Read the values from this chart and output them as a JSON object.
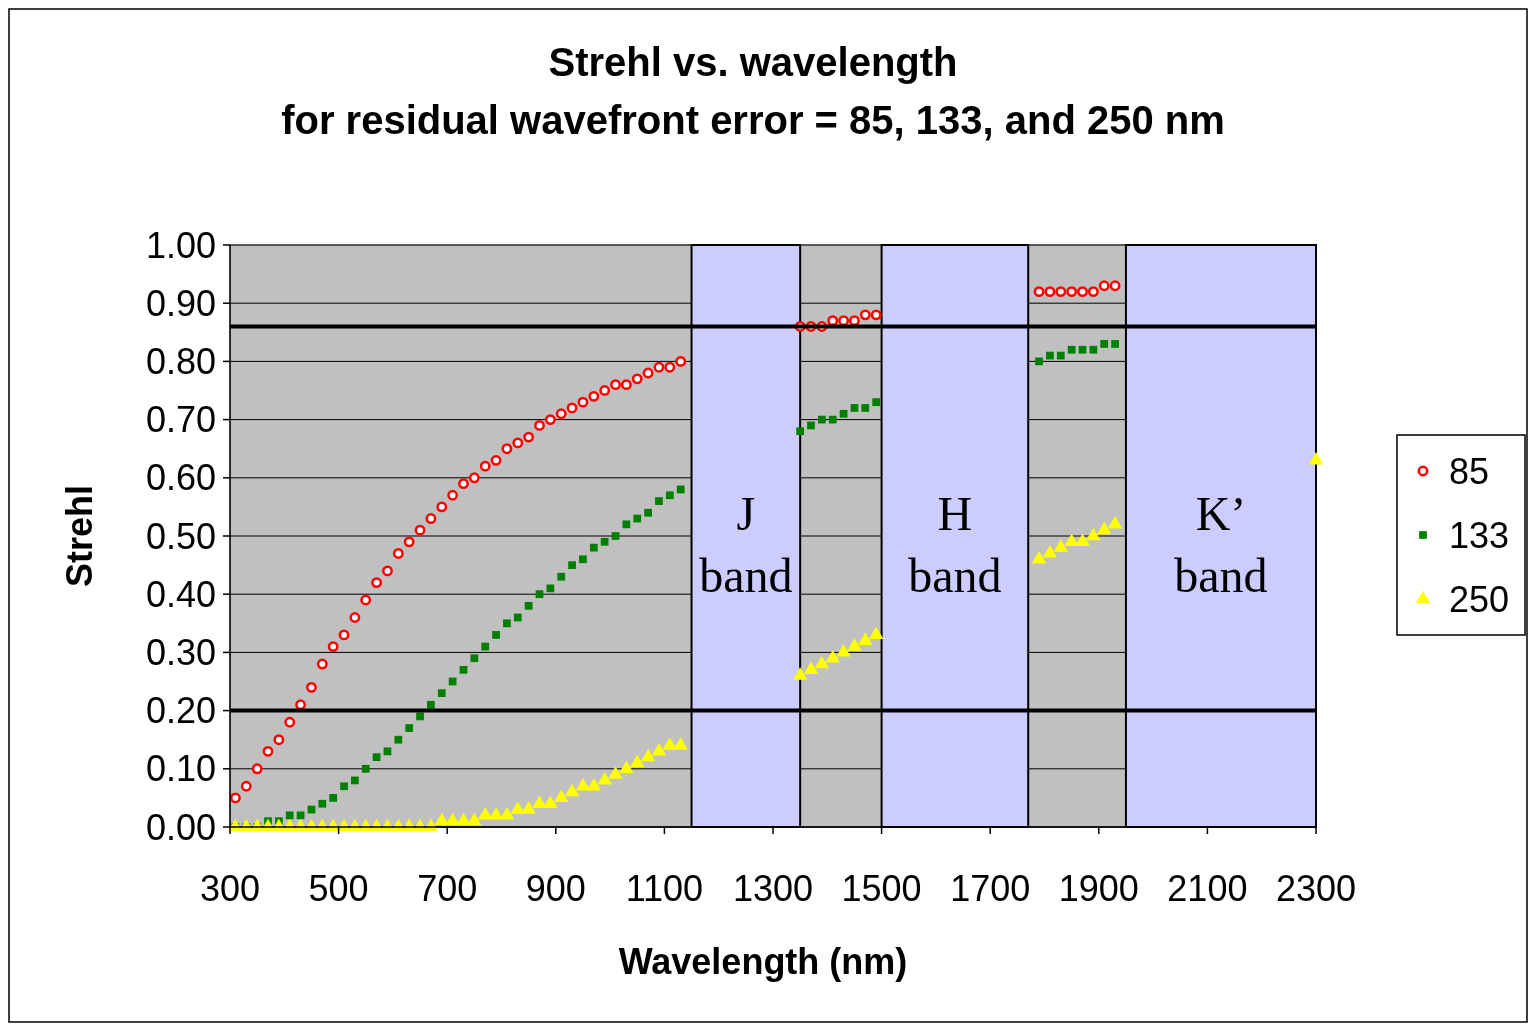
{
  "chart_data": {
    "type": "scatter",
    "title": "Strehl vs. wavelength",
    "subtitle": "for residual wavefront error = 85, 133, and 250 nm",
    "xlabel": "Wavelength (nm)",
    "ylabel": "Strehl",
    "xlim": [
      300,
      2300
    ],
    "xticks": [
      300,
      500,
      700,
      900,
      1100,
      1300,
      1500,
      1700,
      1900,
      2100,
      2300
    ],
    "ylim": [
      0,
      1
    ],
    "yticks": [
      {
        "value": 0,
        "label": "0.00"
      },
      {
        "value": 0.1,
        "label": "0.10"
      },
      {
        "value": 0.2,
        "label": "0.20"
      },
      {
        "value": 0.3,
        "label": "0.30"
      },
      {
        "value": 0.4,
        "label": "0.40"
      },
      {
        "value": 0.5,
        "label": "0.50"
      },
      {
        "value": 0.6,
        "label": "0.60"
      },
      {
        "value": 0.7,
        "label": "0.70"
      },
      {
        "value": 0.8,
        "label": "0.80"
      },
      {
        "value": 0.9,
        "label": "0.90"
      },
      {
        "value": 1,
        "label": "1.00"
      }
    ],
    "grid": "y",
    "legend": "right",
    "series": [
      {
        "name": "85",
        "color": "#ff0000",
        "marker": "circle",
        "x": [
          310,
          330,
          350,
          370,
          390,
          410,
          430,
          450,
          470,
          490,
          510,
          530,
          550,
          570,
          590,
          610,
          630,
          650,
          670,
          690,
          710,
          730,
          750,
          770,
          790,
          810,
          830,
          850,
          870,
          890,
          910,
          930,
          950,
          970,
          990,
          1010,
          1030,
          1050,
          1070,
          1090,
          1110,
          1130,
          1350,
          1370,
          1390,
          1410,
          1430,
          1450,
          1470,
          1490,
          1790,
          1810,
          1830,
          1850,
          1870,
          1890,
          1910,
          1930
        ],
        "values": [
          0.05,
          0.07,
          0.1,
          0.13,
          0.15,
          0.18,
          0.21,
          0.24,
          0.28,
          0.31,
          0.33,
          0.36,
          0.39,
          0.42,
          0.44,
          0.47,
          0.49,
          0.51,
          0.53,
          0.55,
          0.57,
          0.59,
          0.6,
          0.62,
          0.63,
          0.65,
          0.66,
          0.67,
          0.69,
          0.7,
          0.71,
          0.72,
          0.73,
          0.74,
          0.75,
          0.76,
          0.76,
          0.77,
          0.78,
          0.79,
          0.79,
          0.8,
          0.86,
          0.86,
          0.86,
          0.87,
          0.87,
          0.87,
          0.88,
          0.88,
          0.92,
          0.92,
          0.92,
          0.92,
          0.92,
          0.92,
          0.93,
          0.93
        ]
      },
      {
        "name": "133",
        "color": "#008000",
        "marker": "square",
        "x": [
          310,
          330,
          350,
          370,
          390,
          410,
          430,
          450,
          470,
          490,
          510,
          530,
          550,
          570,
          590,
          610,
          630,
          650,
          670,
          690,
          710,
          730,
          750,
          770,
          790,
          810,
          830,
          850,
          870,
          890,
          910,
          930,
          950,
          970,
          990,
          1010,
          1030,
          1050,
          1070,
          1090,
          1110,
          1130,
          1350,
          1370,
          1390,
          1410,
          1430,
          1450,
          1470,
          1490,
          1790,
          1810,
          1830,
          1850,
          1870,
          1890,
          1910,
          1930
        ],
        "values": [
          0.0,
          0.0,
          0.0,
          0.01,
          0.01,
          0.02,
          0.02,
          0.03,
          0.04,
          0.05,
          0.07,
          0.08,
          0.1,
          0.12,
          0.13,
          0.15,
          0.17,
          0.19,
          0.21,
          0.23,
          0.25,
          0.27,
          0.29,
          0.31,
          0.33,
          0.35,
          0.36,
          0.38,
          0.4,
          0.41,
          0.43,
          0.45,
          0.46,
          0.48,
          0.49,
          0.5,
          0.52,
          0.53,
          0.54,
          0.56,
          0.57,
          0.58,
          0.68,
          0.69,
          0.7,
          0.7,
          0.71,
          0.72,
          0.72,
          0.73,
          0.8,
          0.81,
          0.81,
          0.82,
          0.82,
          0.82,
          0.83,
          0.83
        ]
      },
      {
        "name": "250",
        "color": "#ffff00",
        "marker": "triangle",
        "x": [
          310,
          330,
          350,
          370,
          390,
          410,
          430,
          450,
          470,
          490,
          510,
          530,
          550,
          570,
          590,
          610,
          630,
          650,
          670,
          690,
          710,
          730,
          750,
          770,
          790,
          810,
          830,
          850,
          870,
          890,
          910,
          930,
          950,
          970,
          990,
          1010,
          1030,
          1050,
          1070,
          1090,
          1110,
          1130,
          1350,
          1370,
          1390,
          1410,
          1430,
          1450,
          1470,
          1490,
          1790,
          1810,
          1830,
          1850,
          1870,
          1890,
          1910,
          1930,
          2300
        ],
        "values": [
          0.0,
          0.0,
          0.0,
          0.0,
          0.0,
          0.0,
          0.0,
          0.0,
          0.0,
          0.0,
          0.0,
          0.0,
          0.0,
          0.0,
          0.0,
          0.0,
          0.0,
          0.0,
          0.0,
          0.01,
          0.01,
          0.01,
          0.01,
          0.02,
          0.02,
          0.02,
          0.03,
          0.03,
          0.04,
          0.04,
          0.05,
          0.06,
          0.07,
          0.07,
          0.08,
          0.09,
          0.1,
          0.11,
          0.12,
          0.13,
          0.14,
          0.14,
          0.26,
          0.27,
          0.28,
          0.29,
          0.3,
          0.31,
          0.32,
          0.33,
          0.46,
          0.47,
          0.48,
          0.49,
          0.49,
          0.5,
          0.51,
          0.52,
          0.63
        ]
      }
    ],
    "bands": [
      {
        "axis": "x",
        "from": 1150,
        "to": 1350,
        "label": "J band",
        "color": "#ccccff"
      },
      {
        "axis": "x",
        "from": 1500,
        "to": 1770,
        "label": "H band",
        "color": "#ccccff"
      },
      {
        "axis": "x",
        "from": 1950,
        "to": 2300,
        "label": "K’ band",
        "color": "#ccccff"
      }
    ],
    "ref_lines": [
      {
        "axis": "y",
        "value": 0.86,
        "color": "#000000"
      },
      {
        "axis": "y",
        "value": 0.2,
        "color": "#000000"
      }
    ]
  }
}
